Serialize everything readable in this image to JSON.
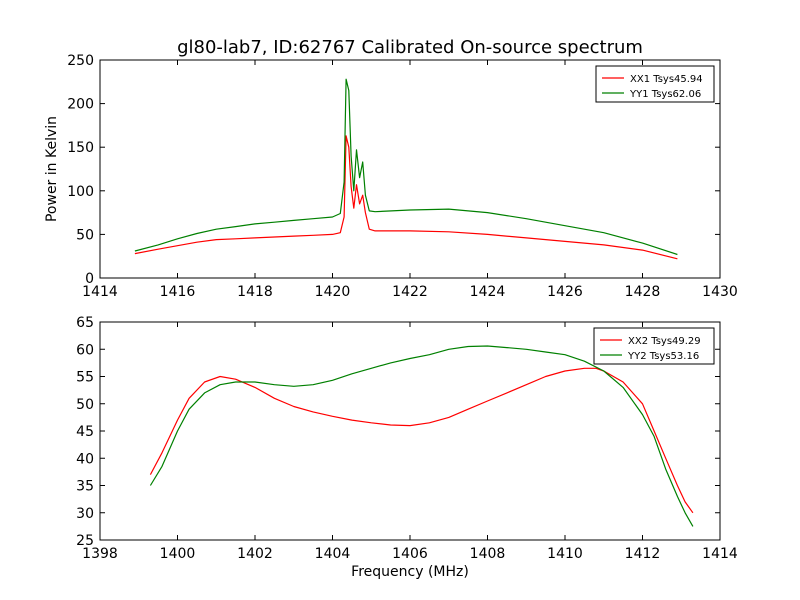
{
  "figure": {
    "title": "gl80-lab7, ID:62767 Calibrated On-source spectrum"
  },
  "chart_data": [
    {
      "type": "line",
      "title": "gl80-lab7, ID:62767 Calibrated On-source spectrum",
      "xlabel": "",
      "ylabel": "Power in Kelvin",
      "xlim": [
        1414,
        1430
      ],
      "ylim": [
        0,
        250
      ],
      "xticks": [
        1414,
        1416,
        1418,
        1420,
        1422,
        1424,
        1426,
        1428,
        1430
      ],
      "yticks": [
        0,
        50,
        100,
        150,
        200,
        250
      ],
      "grid": false,
      "legend": "top-right",
      "series": [
        {
          "name": "XX1 Tsys45.94",
          "color": "#ff0000",
          "points": [
            [
              1414.9,
              28
            ],
            [
              1415.5,
              33
            ],
            [
              1416,
              37
            ],
            [
              1416.5,
              41
            ],
            [
              1417,
              44
            ],
            [
              1417.5,
              45
            ],
            [
              1418,
              46
            ],
            [
              1418.5,
              47
            ],
            [
              1419,
              48
            ],
            [
              1419.5,
              49
            ],
            [
              1420,
              50
            ],
            [
              1420.2,
              52
            ],
            [
              1420.3,
              70
            ],
            [
              1420.35,
              163
            ],
            [
              1420.42,
              150
            ],
            [
              1420.48,
              105
            ],
            [
              1420.55,
              80
            ],
            [
              1420.62,
              107
            ],
            [
              1420.7,
              85
            ],
            [
              1420.78,
              95
            ],
            [
              1420.85,
              75
            ],
            [
              1420.95,
              56
            ],
            [
              1421.1,
              54
            ],
            [
              1422,
              54
            ],
            [
              1423,
              53
            ],
            [
              1424,
              50
            ],
            [
              1425,
              46
            ],
            [
              1426,
              42
            ],
            [
              1427,
              38
            ],
            [
              1428,
              32
            ],
            [
              1428.9,
              22
            ]
          ]
        },
        {
          "name": "YY1 Tsys62.06",
          "color": "#008000",
          "points": [
            [
              1414.9,
              31
            ],
            [
              1415.5,
              38
            ],
            [
              1416,
              45
            ],
            [
              1416.5,
              51
            ],
            [
              1417,
              56
            ],
            [
              1417.5,
              59
            ],
            [
              1418,
              62
            ],
            [
              1418.5,
              64
            ],
            [
              1419,
              66
            ],
            [
              1419.5,
              68
            ],
            [
              1420,
              70
            ],
            [
              1420.2,
              74
            ],
            [
              1420.3,
              110
            ],
            [
              1420.35,
              228
            ],
            [
              1420.42,
              215
            ],
            [
              1420.48,
              140
            ],
            [
              1420.55,
              100
            ],
            [
              1420.62,
              147
            ],
            [
              1420.7,
              115
            ],
            [
              1420.78,
              133
            ],
            [
              1420.85,
              95
            ],
            [
              1420.95,
              77
            ],
            [
              1421.1,
              76
            ],
            [
              1422,
              78
            ],
            [
              1423,
              79
            ],
            [
              1424,
              75
            ],
            [
              1425,
              68
            ],
            [
              1426,
              60
            ],
            [
              1427,
              52
            ],
            [
              1428,
              40
            ],
            [
              1428.9,
              27
            ]
          ]
        }
      ]
    },
    {
      "type": "line",
      "title": "",
      "xlabel": "Frequency (MHz)",
      "ylabel": "",
      "xlim": [
        1398,
        1414
      ],
      "ylim": [
        25,
        65
      ],
      "xticks": [
        1398,
        1400,
        1402,
        1404,
        1406,
        1408,
        1410,
        1412,
        1414
      ],
      "yticks": [
        25,
        30,
        35,
        40,
        45,
        50,
        55,
        60,
        65
      ],
      "grid": false,
      "legend": "top-right",
      "series": [
        {
          "name": "XX2 Tsys49.29",
          "color": "#ff0000",
          "points": [
            [
              1399.3,
              37
            ],
            [
              1399.6,
              41
            ],
            [
              1400,
              47
            ],
            [
              1400.3,
              51
            ],
            [
              1400.7,
              54
            ],
            [
              1401.1,
              55
            ],
            [
              1401.5,
              54.5
            ],
            [
              1402,
              53
            ],
            [
              1402.5,
              51
            ],
            [
              1403,
              49.5
            ],
            [
              1403.5,
              48.5
            ],
            [
              1404,
              47.7
            ],
            [
              1404.5,
              47
            ],
            [
              1405,
              46.5
            ],
            [
              1405.5,
              46.1
            ],
            [
              1406,
              46
            ],
            [
              1406.5,
              46.5
            ],
            [
              1407,
              47.5
            ],
            [
              1407.5,
              49
            ],
            [
              1408,
              50.5
            ],
            [
              1408.5,
              52
            ],
            [
              1409,
              53.5
            ],
            [
              1409.5,
              55
            ],
            [
              1410,
              56
            ],
            [
              1410.5,
              56.5
            ],
            [
              1410.8,
              56.5
            ],
            [
              1411,
              56
            ],
            [
              1411.5,
              54
            ],
            [
              1412,
              50
            ],
            [
              1412.3,
              45
            ],
            [
              1412.6,
              40
            ],
            [
              1412.9,
              35
            ],
            [
              1413.1,
              32
            ],
            [
              1413.3,
              30
            ]
          ]
        },
        {
          "name": "YY2 Tsys53.16",
          "color": "#008000",
          "points": [
            [
              1399.3,
              35
            ],
            [
              1399.6,
              38.5
            ],
            [
              1400,
              45
            ],
            [
              1400.3,
              49
            ],
            [
              1400.7,
              52
            ],
            [
              1401.1,
              53.5
            ],
            [
              1401.5,
              54
            ],
            [
              1402,
              54
            ],
            [
              1402.5,
              53.5
            ],
            [
              1403,
              53.2
            ],
            [
              1403.5,
              53.5
            ],
            [
              1404,
              54.3
            ],
            [
              1404.5,
              55.5
            ],
            [
              1405,
              56.5
            ],
            [
              1405.5,
              57.5
            ],
            [
              1406,
              58.3
            ],
            [
              1406.5,
              59
            ],
            [
              1407,
              60
            ],
            [
              1407.5,
              60.5
            ],
            [
              1408,
              60.6
            ],
            [
              1408.5,
              60.3
            ],
            [
              1409,
              60
            ],
            [
              1409.5,
              59.5
            ],
            [
              1410,
              59
            ],
            [
              1410.5,
              57.8
            ],
            [
              1411,
              56
            ],
            [
              1411.5,
              53
            ],
            [
              1412,
              48
            ],
            [
              1412.3,
              44
            ],
            [
              1412.6,
              38
            ],
            [
              1412.9,
              33
            ],
            [
              1413.1,
              30
            ],
            [
              1413.3,
              27.5
            ]
          ]
        }
      ]
    }
  ]
}
